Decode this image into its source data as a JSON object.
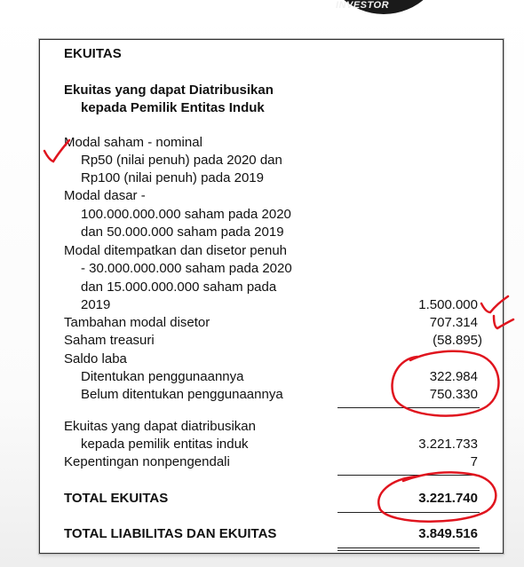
{
  "watermark": "INVESTOR",
  "statement": {
    "heading": "EKUITAS",
    "subheading_line1": "Ekuitas yang dapat Diatribusikan",
    "subheading_line2": "kepada Pemilik Entitas Induk",
    "modal_saham_lines": [
      "Modal saham - nominal",
      "Rp50 (nilai penuh) pada 2020 dan",
      "Rp100 (nilai penuh) pada 2019",
      "Modal dasar -",
      "100.000.000.000 saham pada 2020",
      "dan 50.000.000 saham pada 2019",
      "Modal ditempatkan dan disetor penuh",
      "- 30.000.000.000 saham pada 2020",
      "dan 15.000.000.000 saham pada",
      "2019"
    ],
    "modal_saham_value": "1.500.000",
    "tambahan_modal_label": "Tambahan modal disetor",
    "tambahan_modal_value": "707.314",
    "saham_treasuri_label": "Saham treasuri",
    "saham_treasuri_value": "(58.895)",
    "saldo_laba_label": "Saldo laba",
    "ditentukan_label": "Ditentukan penggunaannya",
    "ditentukan_value": "322.984",
    "belum_ditentukan_label": "Belum ditentukan penggunaannya",
    "belum_ditentukan_value": "750.330",
    "ekuitas_induk_line1": "Ekuitas yang dapat diatribusikan",
    "ekuitas_induk_line2": "kepada pemilik entitas induk",
    "ekuitas_induk_value": "3.221.733",
    "nonpengendali_label": "Kepentingan nonpengendali",
    "nonpengendali_value": "7",
    "total_ekuitas_label": "TOTAL EKUITAS",
    "total_ekuitas_value": "3.221.740",
    "total_liab_label": "TOTAL LIABILITAS DAN EKUITAS",
    "total_liab_value": "3.849.516"
  },
  "annotation_color": "#e0141e"
}
